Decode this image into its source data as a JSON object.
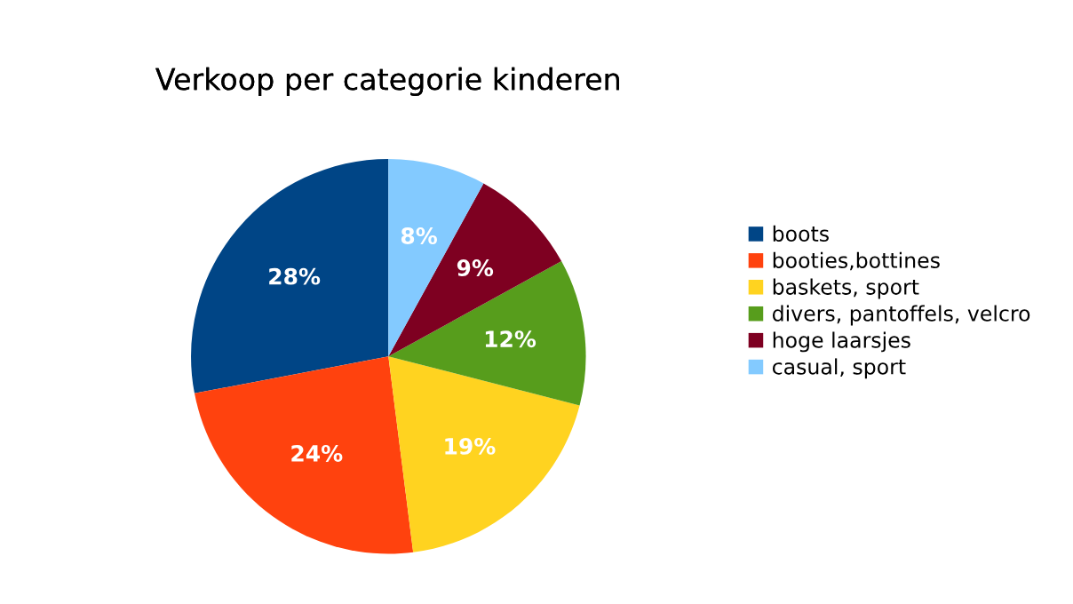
{
  "chart_data": {
    "type": "pie",
    "title": "Verkoop per categorie kinderen",
    "categories": [
      "boots",
      "booties,bottines",
      "baskets, sport",
      "divers, pantoffels, velcro",
      "hoge laarsjes",
      "casual, sport"
    ],
    "values": [
      28,
      24,
      19,
      12,
      9,
      8
    ],
    "colors": [
      "#004586",
      "#ff420e",
      "#ffd320",
      "#579d1c",
      "#7e0021",
      "#83caff"
    ],
    "value_labels": [
      "28%",
      "24%",
      "19%",
      "12%",
      "9%",
      "8%"
    ],
    "legend": "right"
  }
}
